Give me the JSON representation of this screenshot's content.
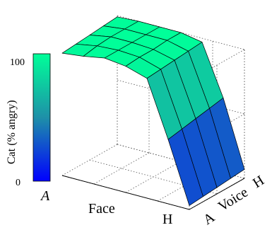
{
  "chart_data": {
    "type": "surface",
    "title": "",
    "xlabel": "Face",
    "ylabel": "Voice",
    "zlabel": "Cat (% angry)",
    "x_tick_labels": [
      "A",
      "H"
    ],
    "y_tick_labels": [
      "A",
      "H"
    ],
    "colorbar_tick_labels": [
      "0",
      "100"
    ],
    "zlim": [
      0,
      100
    ],
    "colormap": [
      "#0000ff",
      "#1e90a8",
      "#00ff99"
    ],
    "face_levels": [
      1,
      2,
      3,
      4,
      5,
      6,
      7
    ],
    "voice_levels": [
      1,
      2,
      3,
      4,
      5
    ],
    "z": [
      [
        95,
        97,
        100,
        98,
        93,
        50,
        3
      ],
      [
        96,
        99,
        100,
        99,
        94,
        52,
        4
      ],
      [
        97,
        100,
        100,
        99,
        95,
        54,
        5
      ],
      [
        98,
        100,
        100,
        100,
        96,
        56,
        6
      ],
      [
        99,
        100,
        100,
        100,
        97,
        58,
        7
      ]
    ],
    "grid": true
  }
}
